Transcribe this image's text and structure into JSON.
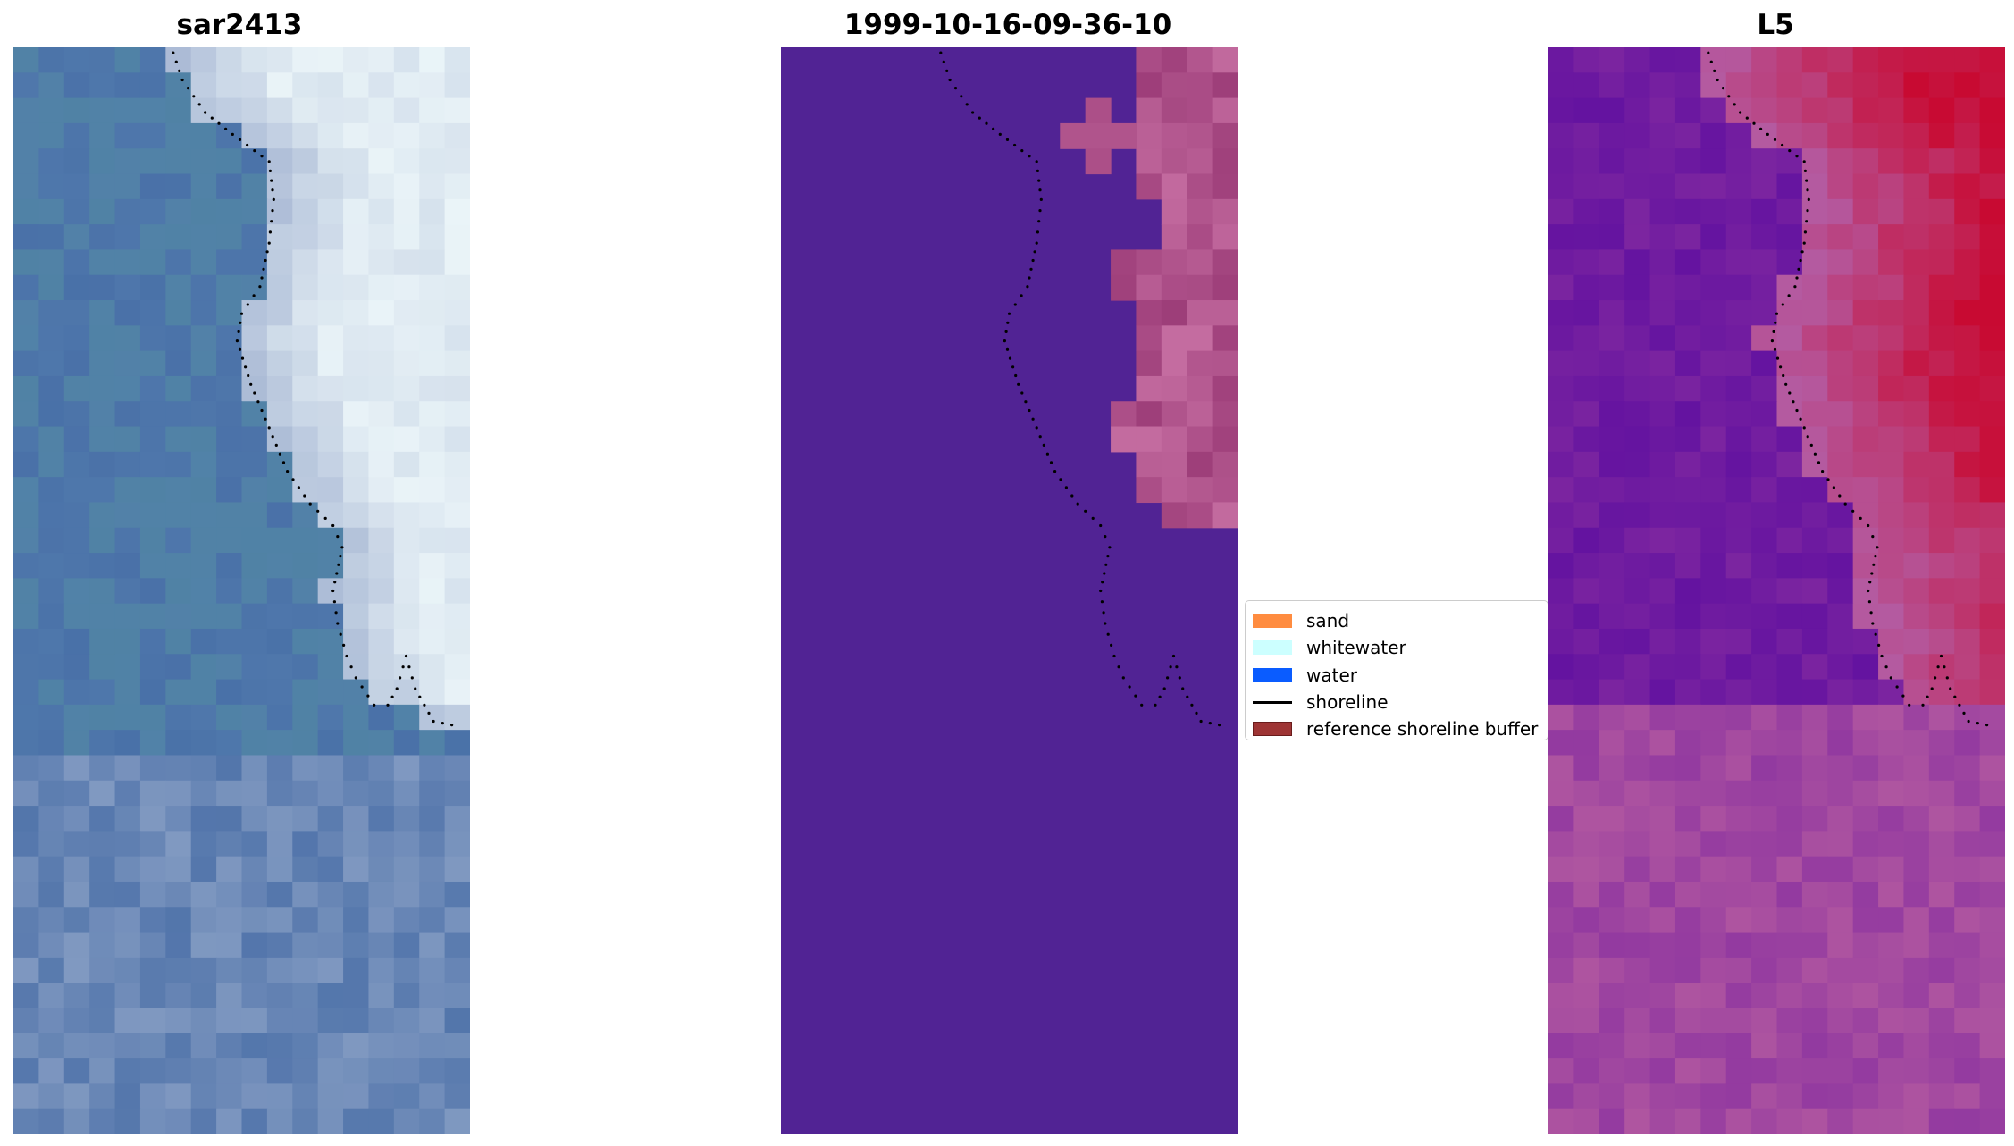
{
  "panels": [
    {
      "title": "sar2413"
    },
    {
      "title": "1999-10-16-09-36-10"
    },
    {
      "title": "L5"
    }
  ],
  "legend": {
    "items": [
      {
        "label": "sand",
        "kind": "patch",
        "color": "#ff8c40"
      },
      {
        "label": "whitewater",
        "kind": "patch",
        "color": "#ccffff"
      },
      {
        "label": "water",
        "kind": "patch",
        "color": "#0a5cff"
      },
      {
        "label": "shoreline",
        "kind": "line",
        "color": "#000000"
      },
      {
        "label": "reference shoreline buffer",
        "kind": "patch",
        "color": "#9e3535"
      }
    ]
  },
  "colors": {
    "water_class": "#512394",
    "land_class": "#a24f8c",
    "sar_water": "#4a6fa5",
    "sar_land": "#e8f2f6",
    "l5_low": "#5a0aa0",
    "l5_high": "#c8002a"
  }
}
